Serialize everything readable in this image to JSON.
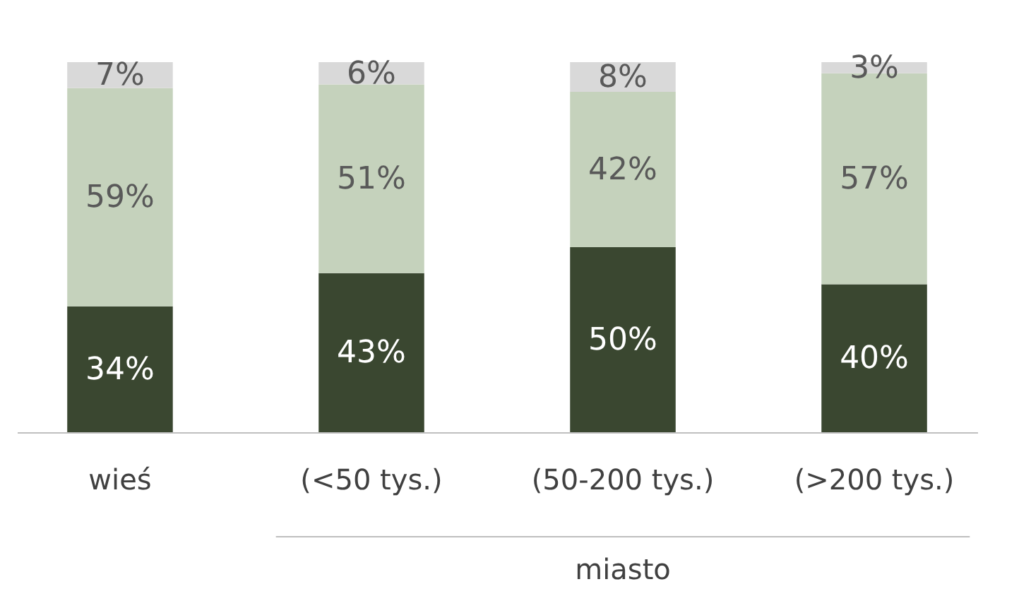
{
  "chart_data": {
    "type": "bar",
    "stacked": true,
    "grid": false,
    "categories": [
      "wieś",
      "(<50 tys.)",
      "(50-200 tys.)",
      "(>200 tys.)"
    ],
    "series": [
      {
        "color": "#3a4730",
        "values": [
          34,
          43,
          50,
          40
        ],
        "value_labels": [
          "34%",
          "43%",
          "50%",
          "40%"
        ]
      },
      {
        "color": "#c5d2bc",
        "values": [
          59,
          51,
          42,
          57
        ],
        "value_labels": [
          "59%",
          "51%",
          "42%",
          "57%"
        ]
      },
      {
        "color": "#d9d9d9",
        "values": [
          7,
          6,
          8,
          3
        ],
        "value_labels": [
          "7%",
          "6%",
          "8%",
          "3%"
        ]
      }
    ],
    "annotations": [
      "miasto"
    ]
  }
}
